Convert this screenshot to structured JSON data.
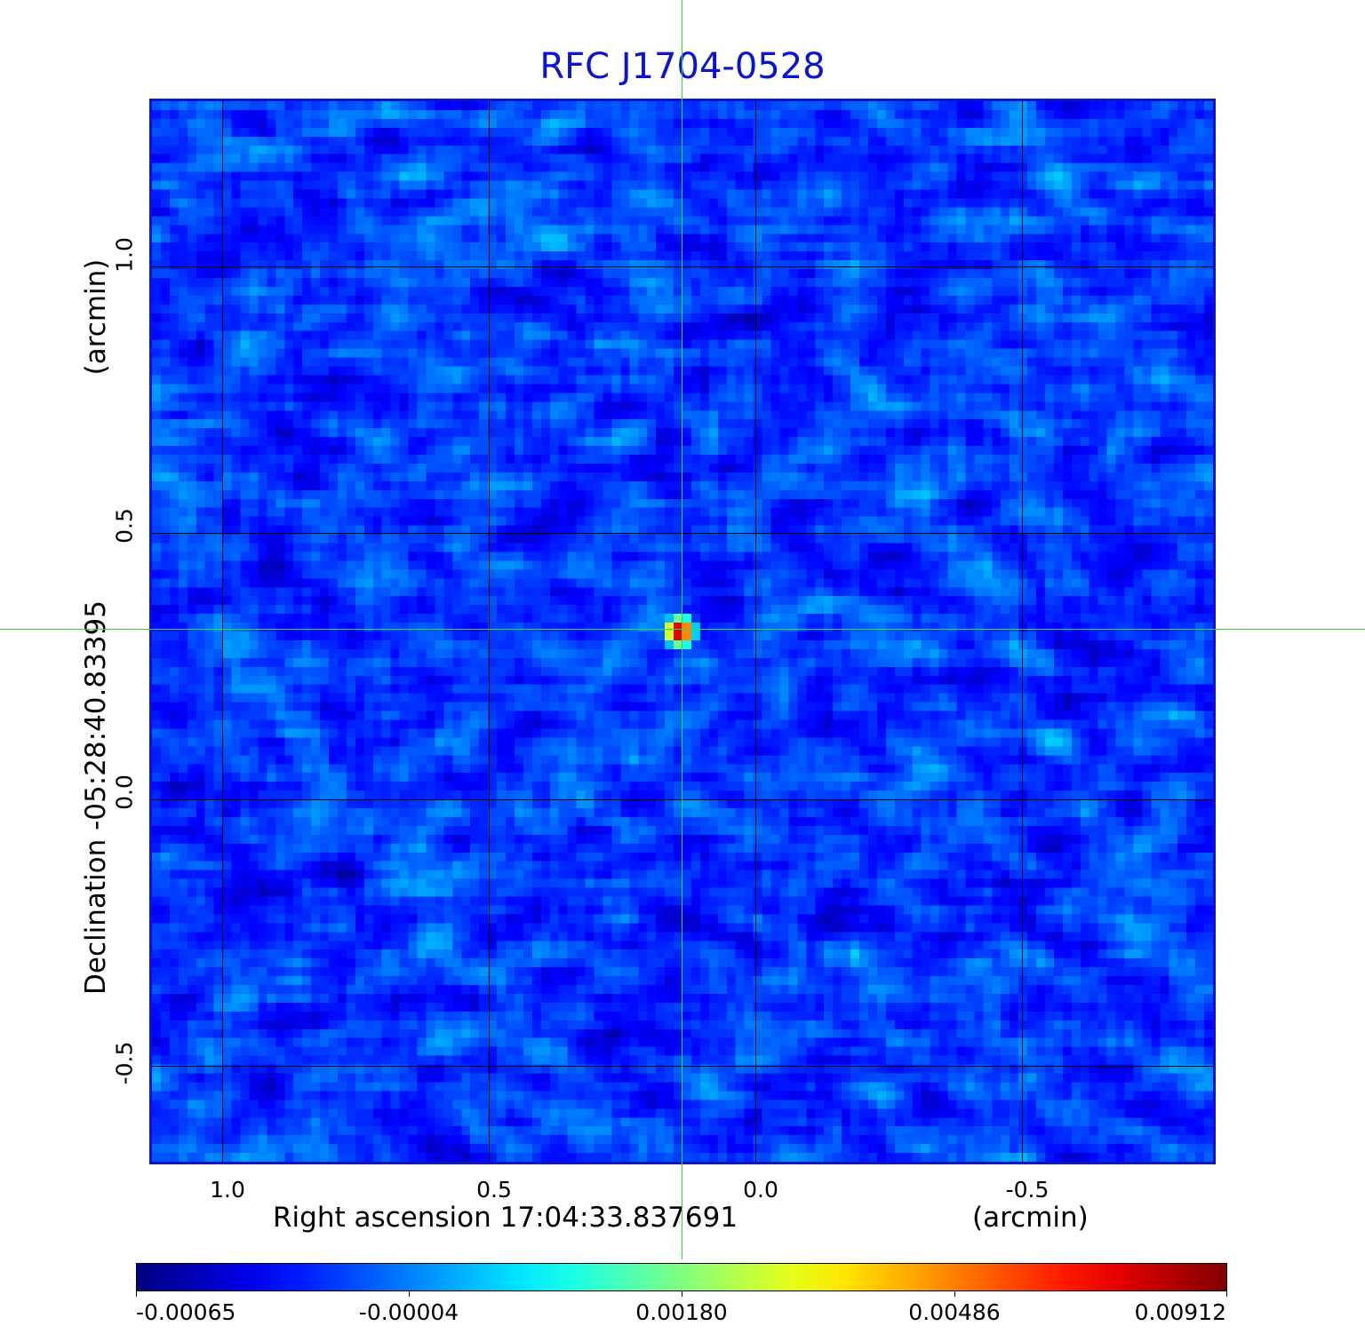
{
  "chart_data": {
    "type": "heatmap",
    "title": "RFC J1704-0528",
    "xlabel": "Right ascension  17:04:33.837691",
    "xunit": "(arcmin)",
    "ylabel": "Declination  -05:28:40.83395",
    "yunit": "(arcmin)",
    "xlim": [
      1.13,
      -0.87
    ],
    "ylim": [
      -0.68,
      1.32
    ],
    "x_ticks": [
      "1.0",
      "0.5",
      "0.0",
      "-0.5"
    ],
    "x_tick_values": [
      1.0,
      0.5,
      0.0,
      -0.5
    ],
    "y_ticks": [
      "-0.5",
      "0.0",
      "0.5",
      "1.0"
    ],
    "y_tick_values": [
      -0.5,
      0.0,
      0.5,
      1.0
    ],
    "grid": true,
    "colormap": "jet",
    "colorbar_ticks": [
      "-0.00065",
      "-0.00004",
      "0.00180",
      "0.00486",
      "0.00912"
    ],
    "colorbar_tick_values": [
      -0.00065,
      -4e-05,
      0.0018,
      0.00486,
      0.00912
    ],
    "peak": {
      "x": 0.135,
      "y": 0.32,
      "value": 0.00912
    },
    "crosshair": {
      "x": 0.135,
      "y": 0.32
    },
    "colors": {
      "title": "#0a14d2",
      "frame": "#0a14d2",
      "crosshair": "#36d636",
      "grid": "#000000"
    }
  }
}
